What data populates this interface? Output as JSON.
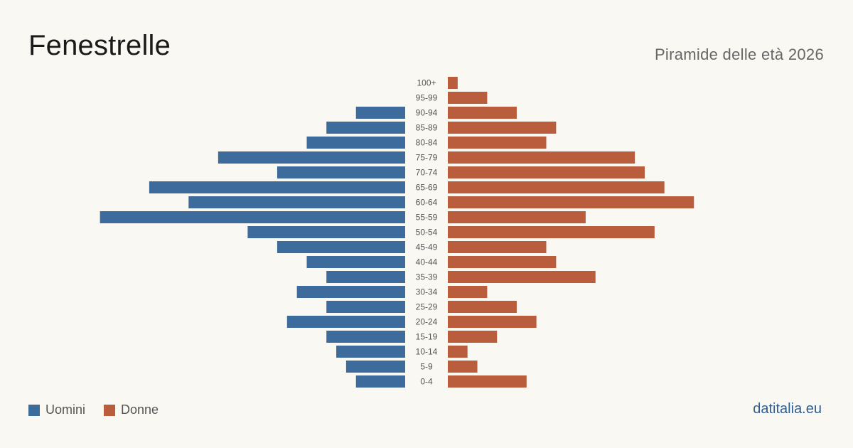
{
  "header": {
    "title": "Fenestrelle",
    "subtitle": "Piramide delle età 2026"
  },
  "legend": {
    "male_label": "Uomini",
    "female_label": "Donne"
  },
  "brand": "datitalia.eu",
  "colors": {
    "male": "#3d6b9c",
    "female": "#b95d3d",
    "label": "#555555"
  },
  "chart_data": {
    "type": "bar",
    "orientation": "horizontal-pyramid",
    "categories": [
      "100+",
      "95-99",
      "90-94",
      "85-89",
      "80-84",
      "75-79",
      "70-74",
      "65-69",
      "60-64",
      "55-59",
      "50-54",
      "45-49",
      "40-44",
      "35-39",
      "30-34",
      "25-29",
      "20-24",
      "15-19",
      "10-14",
      "5-9",
      "0-4"
    ],
    "series": [
      {
        "name": "Uomini",
        "values": [
          0,
          0,
          5,
          8,
          10,
          19,
          13,
          26,
          22,
          31,
          16,
          13,
          10,
          8,
          11,
          8,
          12,
          8,
          7,
          6,
          5
        ]
      },
      {
        "name": "Donne",
        "values": [
          1,
          4,
          7,
          11,
          10,
          19,
          20,
          22,
          25,
          14,
          21,
          10,
          11,
          15,
          4,
          7,
          9,
          5,
          2,
          3,
          8
        ]
      }
    ]
  }
}
